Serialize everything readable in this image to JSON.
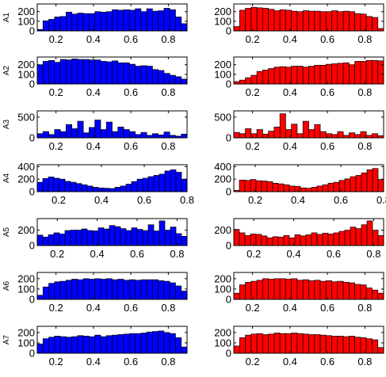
{
  "chart_data": [
    {
      "type": "bar",
      "panel": "A1-left",
      "ylabel": "A1",
      "color": "#0000ff",
      "xlim": [
        0.1,
        0.9
      ],
      "ylim": [
        0,
        280
      ],
      "xticks": [
        "0.2",
        "0.4",
        "0.6",
        "0.8"
      ],
      "yticks": [
        "0",
        "100",
        "200"
      ],
      "values": [
        15,
        105,
        120,
        145,
        150,
        195,
        175,
        185,
        180,
        180,
        200,
        195,
        200,
        220,
        215,
        220,
        215,
        230,
        200,
        230,
        205,
        210,
        235,
        220,
        145,
        75
      ]
    },
    {
      "type": "bar",
      "panel": "A1-right",
      "color": "#ff0000",
      "xlim": [
        0.1,
        0.9
      ],
      "ylim": [
        0,
        280
      ],
      "xticks": [
        "0.2",
        "0.4",
        "0.6",
        "0.8"
      ],
      "yticks": [
        "0",
        "100",
        "200"
      ],
      "values": [
        45,
        215,
        235,
        245,
        240,
        235,
        225,
        210,
        220,
        215,
        205,
        200,
        210,
        205,
        205,
        200,
        200,
        210,
        200,
        205,
        200,
        180,
        175,
        150,
        140,
        25
      ]
    },
    {
      "type": "bar",
      "panel": "A2-left",
      "ylabel": "A2",
      "color": "#0000ff",
      "xlim": [
        0.1,
        0.9
      ],
      "ylim": [
        0,
        280
      ],
      "xticks": [
        "0.2",
        "0.4",
        "0.6",
        "0.8"
      ],
      "yticks": [
        "0",
        "100",
        "200"
      ],
      "values": [
        200,
        235,
        245,
        225,
        255,
        250,
        260,
        255,
        255,
        250,
        250,
        235,
        230,
        240,
        220,
        220,
        205,
        185,
        190,
        185,
        150,
        140,
        110,
        90,
        75,
        50
      ]
    },
    {
      "type": "bar",
      "panel": "A2-right",
      "color": "#ff0000",
      "xlim": [
        0.1,
        0.9
      ],
      "ylim": [
        0,
        280
      ],
      "xticks": [
        "0.2",
        "0.4",
        "0.6",
        "0.8"
      ],
      "yticks": [
        "0",
        "100",
        "200"
      ],
      "values": [
        25,
        40,
        65,
        90,
        130,
        145,
        160,
        175,
        180,
        175,
        185,
        185,
        175,
        185,
        195,
        195,
        205,
        210,
        215,
        220,
        200,
        235,
        235,
        245,
        245,
        240
      ]
    },
    {
      "type": "bar",
      "panel": "A3-left",
      "ylabel": "A3",
      "color": "#0000ff",
      "xlim": [
        0.1,
        0.9
      ],
      "ylim": [
        0,
        650
      ],
      "xticks": [
        "0.2",
        "0.4",
        "0.6",
        "0.8"
      ],
      "yticks": [
        "0",
        "500"
      ],
      "values": [
        100,
        150,
        80,
        200,
        150,
        320,
        220,
        400,
        120,
        250,
        430,
        200,
        380,
        150,
        260,
        200,
        150,
        80,
        130,
        60,
        100,
        70,
        140,
        60,
        40,
        90
      ]
    },
    {
      "type": "bar",
      "panel": "A3-right",
      "color": "#ff0000",
      "xlim": [
        0.1,
        0.9
      ],
      "ylim": [
        0,
        650
      ],
      "xticks": [
        "0.2",
        "0.4",
        "0.6",
        "0.8"
      ],
      "yticks": [
        "0",
        "500"
      ],
      "values": [
        130,
        100,
        220,
        100,
        200,
        90,
        160,
        260,
        580,
        200,
        330,
        100,
        400,
        200,
        320,
        150,
        100,
        80,
        150,
        60,
        120,
        80,
        150,
        60,
        100,
        50
      ]
    },
    {
      "type": "bar",
      "panel": "A4-left",
      "ylabel": "A4",
      "color": "#0000ff",
      "xlim": [
        0.1,
        0.8
      ],
      "ylim": [
        0,
        430
      ],
      "xticks": [
        "0.2",
        "0.4",
        "0.6",
        "0.8"
      ],
      "yticks": [
        "0",
        "200",
        "400"
      ],
      "values": [
        150,
        210,
        235,
        215,
        200,
        165,
        150,
        130,
        110,
        90,
        70,
        60,
        55,
        50,
        70,
        90,
        120,
        160,
        200,
        215,
        240,
        260,
        280,
        330,
        350,
        310,
        200
      ]
    },
    {
      "type": "bar",
      "panel": "A4-right",
      "color": "#ff0000",
      "xlim": [
        0.1,
        0.8
      ],
      "ylim": [
        0,
        430
      ],
      "xticks": [
        "0.2",
        "0.4",
        "0.6",
        "0.8"
      ],
      "yticks": [
        "0",
        "200",
        "400"
      ],
      "values": [
        20,
        185,
        180,
        195,
        175,
        170,
        160,
        135,
        125,
        110,
        90,
        85,
        60,
        55,
        70,
        90,
        110,
        135,
        150,
        180,
        205,
        240,
        260,
        300,
        350,
        370,
        195
      ]
    },
    {
      "type": "bar",
      "panel": "A5-left",
      "ylabel": "A5",
      "color": "#0000ff",
      "xlim": [
        0.1,
        0.85
      ],
      "ylim": [
        0,
        350
      ],
      "xticks": [
        "0.2",
        "0.4",
        "0.6",
        "0.8"
      ],
      "yticks": [
        "0",
        "200"
      ],
      "values": [
        135,
        110,
        140,
        165,
        150,
        195,
        200,
        200,
        215,
        195,
        190,
        230,
        215,
        260,
        245,
        220,
        195,
        230,
        210,
        195,
        270,
        190,
        320,
        200,
        240,
        155,
        120
      ]
    },
    {
      "type": "bar",
      "panel": "A5-right",
      "color": "#ff0000",
      "xlim": [
        0.1,
        0.85
      ],
      "ylim": [
        0,
        350
      ],
      "xticks": [
        "0.2",
        "0.4",
        "0.6",
        "0.8"
      ],
      "yticks": [
        "0",
        "200"
      ],
      "values": [
        210,
        165,
        130,
        150,
        145,
        125,
        100,
        115,
        110,
        130,
        100,
        140,
        125,
        140,
        165,
        145,
        160,
        150,
        165,
        185,
        200,
        240,
        220,
        270,
        320,
        200,
        130
      ]
    },
    {
      "type": "bar",
      "panel": "A6-left",
      "ylabel": "A6",
      "color": "#0000ff",
      "xlim": [
        0.1,
        0.9
      ],
      "ylim": [
        0,
        260
      ],
      "xticks": [
        "0.2",
        "0.4",
        "0.6",
        "0.8"
      ],
      "yticks": [
        "0",
        "100",
        "200"
      ],
      "values": [
        40,
        120,
        155,
        170,
        175,
        185,
        195,
        190,
        200,
        195,
        200,
        195,
        200,
        190,
        195,
        185,
        190,
        185,
        190,
        190,
        190,
        180,
        175,
        160,
        130,
        80
      ]
    },
    {
      "type": "bar",
      "panel": "A6-right",
      "color": "#ff0000",
      "xlim": [
        0.1,
        0.9
      ],
      "ylim": [
        0,
        260
      ],
      "xticks": [
        "0.2",
        "0.4",
        "0.6",
        "0.8"
      ],
      "yticks": [
        "0",
        "100",
        "200"
      ],
      "values": [
        60,
        140,
        165,
        175,
        185,
        200,
        195,
        200,
        200,
        195,
        200,
        185,
        190,
        180,
        185,
        175,
        180,
        170,
        175,
        165,
        160,
        145,
        140,
        110,
        90,
        60
      ]
    },
    {
      "type": "bar",
      "panel": "A7-left",
      "ylabel": "A7",
      "color": "#0000ff",
      "xlim": [
        0.1,
        0.9
      ],
      "ylim": [
        0,
        260
      ],
      "xticks": [
        "0.2",
        "0.4",
        "0.6",
        "0.8"
      ],
      "yticks": [
        "0",
        "100",
        "200"
      ],
      "values": [
        90,
        140,
        155,
        165,
        160,
        155,
        160,
        170,
        165,
        160,
        175,
        160,
        170,
        175,
        180,
        185,
        190,
        190,
        195,
        205,
        210,
        215,
        200,
        190,
        150,
        60
      ]
    },
    {
      "type": "bar",
      "panel": "A7-right",
      "color": "#ff0000",
      "xlim": [
        0.1,
        0.9
      ],
      "ylim": [
        0,
        260
      ],
      "xticks": [
        "0.2",
        "0.4",
        "0.6",
        "0.8"
      ],
      "yticks": [
        "0",
        "100",
        "200"
      ],
      "values": [
        70,
        150,
        175,
        185,
        190,
        180,
        185,
        195,
        190,
        190,
        195,
        190,
        185,
        180,
        180,
        175,
        170,
        165,
        165,
        160,
        165,
        155,
        150,
        140,
        130,
        55
      ]
    }
  ]
}
